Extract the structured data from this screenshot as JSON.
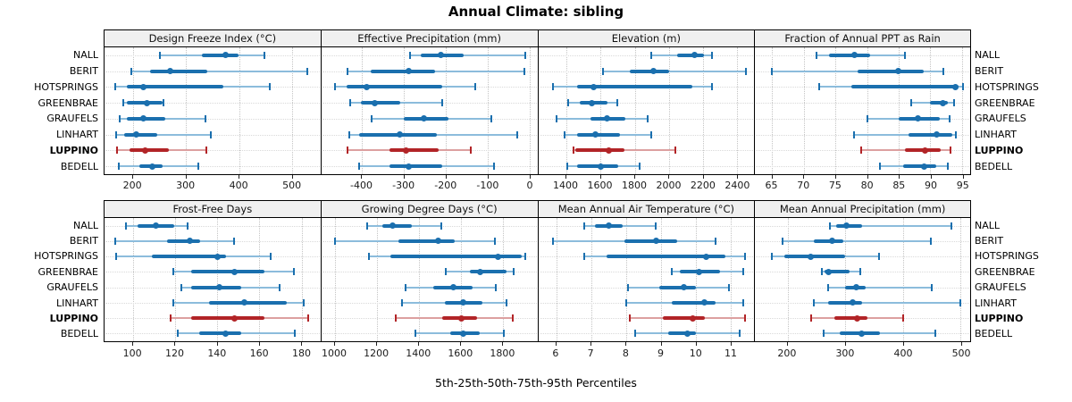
{
  "title": "Annual Climate: sibling",
  "footer": "5th-25th-50th-75th-95th Percentiles",
  "colors": {
    "normal": "#1a6fae",
    "normal_light": "#8cbcdc",
    "highlight": "#b22427",
    "highlight_light": "#dca0a0",
    "header_bg": "#f0f0f0",
    "panel_border": "#000000",
    "grid": "#c4c4c4"
  },
  "chart_data": {
    "type": "dot-interval percentile trellis",
    "percentile_labels": [
      "5th",
      "25th",
      "50th",
      "75th",
      "95th"
    ],
    "stations": [
      "NALL",
      "BERIT",
      "HOTSPRINGS",
      "GREENBRAE",
      "GRAUFELS",
      "LINHART",
      "LUPPINO",
      "BEDELL"
    ],
    "highlight_station": "LUPPINO",
    "grid": "dotted",
    "panels": [
      {
        "title": "Design Freeze Index (°C)",
        "xlim": [
          146,
          554
        ],
        "ticks": [
          200,
          300,
          400,
          500
        ],
        "values": [
          [
            250,
            330,
            375,
            400,
            448
          ],
          [
            197,
            232,
            270,
            340,
            529
          ],
          [
            166,
            189,
            220,
            371,
            459
          ],
          [
            182,
            189,
            227,
            256,
            258
          ],
          [
            175,
            189,
            219,
            261,
            337
          ],
          [
            168,
            183,
            206,
            245,
            346
          ],
          [
            170,
            194,
            222,
            267,
            339
          ],
          [
            173,
            211,
            236,
            256,
            324
          ]
        ]
      },
      {
        "title": "Effective Precipitation (mm)",
        "xlim": [
          -497,
          18
        ],
        "ticks": [
          -400,
          -300,
          -200,
          -100,
          0
        ],
        "values": [
          [
            -286,
            -261,
            -213,
            -158,
            -10
          ],
          [
            -435,
            -379,
            -288,
            -225,
            -12
          ],
          [
            -464,
            -437,
            -389,
            -208,
            -131
          ],
          [
            -428,
            -402,
            -369,
            -310,
            -208
          ],
          [
            -377,
            -300,
            -252,
            -194,
            -91
          ],
          [
            -430,
            -406,
            -310,
            -222,
            -30
          ],
          [
            -435,
            -335,
            -296,
            -218,
            -141
          ],
          [
            -406,
            -335,
            -289,
            -208,
            -86
          ]
        ]
      },
      {
        "title": "Elevation (m)",
        "xlim": [
          1236,
          2498
        ],
        "ticks": [
          1400,
          1600,
          1800,
          2000,
          2200,
          2400
        ],
        "values": [
          [
            1895,
            2047,
            2150,
            2207,
            2250
          ],
          [
            1613,
            1773,
            1912,
            2000,
            2450
          ],
          [
            1322,
            1461,
            1560,
            2138,
            2250
          ],
          [
            1412,
            1478,
            1547,
            1643,
            1700
          ],
          [
            1344,
            1539,
            1638,
            1747,
            1878
          ],
          [
            1388,
            1461,
            1570,
            1712,
            1895
          ],
          [
            1443,
            1455,
            1648,
            1738,
            2039
          ],
          [
            1405,
            1461,
            1600,
            1704,
            1829
          ]
        ]
      },
      {
        "title": "Fraction of Annual PPT as Rain",
        "xlim": [
          62.3,
          96.3
        ],
        "ticks": [
          65,
          70,
          75,
          80,
          85,
          90,
          95
        ],
        "values": [
          [
            72,
            74,
            78,
            80.5,
            86
          ],
          [
            65,
            78.5,
            85,
            89,
            92
          ],
          [
            72.5,
            77.5,
            94,
            94.5,
            95.1
          ],
          [
            87,
            90,
            92,
            92.8,
            93.8
          ],
          [
            80,
            85,
            88,
            91.5,
            93
          ],
          [
            78,
            86.5,
            91,
            93.5,
            94.1
          ],
          [
            79,
            86,
            89.2,
            91.7,
            93.2
          ],
          [
            82,
            85.7,
            89,
            91,
            92.7
          ]
        ]
      },
      {
        "title": "Frost-Free Days",
        "xlim": [
          86.4,
          189
        ],
        "ticks": [
          100,
          120,
          140,
          160,
          180
        ],
        "values": [
          [
            96.5,
            102,
            111,
            119.5,
            126
          ],
          [
            91.5,
            116,
            127,
            132,
            148
          ],
          [
            92,
            109,
            140,
            144,
            165.5
          ],
          [
            119,
            127.5,
            148,
            162.5,
            176.5
          ],
          [
            123,
            127.5,
            141,
            151.5,
            169.5
          ],
          [
            119,
            136,
            153,
            173,
            181
          ],
          [
            118,
            127.5,
            148,
            162.5,
            183
          ],
          [
            121,
            131.5,
            144,
            151.5,
            177
          ]
        ]
      },
      {
        "title": "Growing Degree Days (°C)",
        "xlim": [
          935,
          1966
        ],
        "ticks": [
          1000,
          1200,
          1400,
          1600,
          1800
        ],
        "values": [
          [
            1153,
            1224,
            1276,
            1365,
            1507
          ],
          [
            1000,
            1301,
            1492,
            1570,
            1762
          ],
          [
            1160,
            1266,
            1779,
            1893,
            1910
          ],
          [
            1528,
            1646,
            1695,
            1821,
            1854
          ],
          [
            1337,
            1471,
            1564,
            1655,
            1769
          ],
          [
            1319,
            1524,
            1613,
            1705,
            1818
          ],
          [
            1290,
            1510,
            1605,
            1680,
            1849
          ],
          [
            1382,
            1549,
            1613,
            1691,
            1807
          ]
        ]
      },
      {
        "title": "Mean Annual Air Temperature (°C)",
        "xlim": [
          5.48,
          11.67
        ],
        "ticks": [
          6,
          7,
          8,
          9,
          10,
          11
        ],
        "values": [
          [
            6.8,
            7.1,
            7.5,
            7.9,
            8.85
          ],
          [
            5.9,
            7.95,
            8.85,
            9.45,
            10.55
          ],
          [
            6.8,
            7.45,
            10.3,
            10.85,
            11.4
          ],
          [
            9.3,
            9.55,
            10.1,
            10.7,
            11.35
          ],
          [
            8.05,
            8.95,
            9.65,
            10,
            10.95
          ],
          [
            8,
            9.3,
            10.25,
            10.55,
            11.35
          ],
          [
            8.1,
            9.05,
            9.9,
            10.25,
            11.4
          ],
          [
            8.25,
            9.2,
            9.75,
            10,
            11.25
          ]
        ]
      },
      {
        "title": "Mean Annual Precipitation (mm)",
        "xlim": [
          143.7,
          516.8
        ],
        "ticks": [
          200,
          300,
          400,
          500
        ],
        "values": [
          [
            273,
            285,
            302,
            330,
            485
          ],
          [
            191,
            246,
            277,
            297,
            449
          ],
          [
            172,
            195,
            240,
            300,
            358
          ],
          [
            260,
            264,
            271,
            308,
            326
          ],
          [
            271,
            300,
            319,
            336,
            450
          ],
          [
            245,
            271,
            313,
            329,
            500
          ],
          [
            241,
            282,
            321,
            338,
            400
          ],
          [
            263,
            291,
            328,
            361,
            456
          ]
        ]
      }
    ]
  }
}
